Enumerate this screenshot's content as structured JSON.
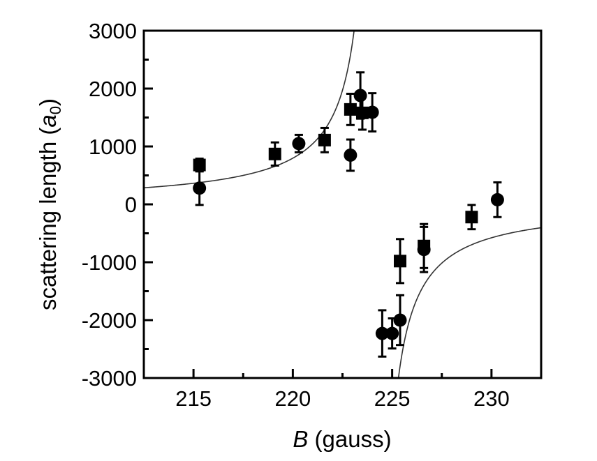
{
  "chart_data": {
    "type": "scatter",
    "xlabel": {
      "italic": "B",
      "rest": " (gauss)"
    },
    "ylabel": {
      "prefix": "scattering length (",
      "symbol": "a",
      "sub": "0",
      "suffix": ")"
    },
    "xlim": [
      212.5,
      232.5
    ],
    "ylim": [
      -3000,
      3000
    ],
    "xticks": [
      215,
      220,
      225,
      230
    ],
    "xtick_labels": [
      "215",
      "220",
      "225",
      "230"
    ],
    "yticks": [
      -3000,
      -2000,
      -1000,
      0,
      1000,
      2000,
      3000
    ],
    "ytick_labels": [
      "-3000",
      "-2000",
      "-1000",
      "0",
      "1000",
      "2000",
      "3000"
    ],
    "grid": false,
    "legend": "none",
    "series": [
      {
        "marker": "square",
        "points": [
          {
            "x": 215.3,
            "y": 680,
            "yerr": 110
          },
          {
            "x": 219.1,
            "y": 870,
            "yerr": 200
          },
          {
            "x": 221.6,
            "y": 1110,
            "yerr": 210
          },
          {
            "x": 222.9,
            "y": 1640,
            "yerr": 270
          },
          {
            "x": 223.5,
            "y": 1580,
            "yerr": 290
          },
          {
            "x": 225.4,
            "y": -980,
            "yerr": 380
          },
          {
            "x": 226.6,
            "y": -720,
            "yerr": 380
          },
          {
            "x": 229.0,
            "y": -220,
            "yerr": 210
          }
        ]
      },
      {
        "marker": "circle",
        "points": [
          {
            "x": 215.3,
            "y": 280,
            "yerr": 290
          },
          {
            "x": 220.3,
            "y": 1050,
            "yerr": 150
          },
          {
            "x": 222.9,
            "y": 850,
            "yerr": 270
          },
          {
            "x": 223.4,
            "y": 1880,
            "yerr": 400
          },
          {
            "x": 224.0,
            "y": 1590,
            "yerr": 330
          },
          {
            "x": 224.5,
            "y": -2230,
            "yerr": 400
          },
          {
            "x": 225.0,
            "y": -2230,
            "yerr": 260
          },
          {
            "x": 225.4,
            "y": -2000,
            "yerr": 430
          },
          {
            "x": 226.6,
            "y": -780,
            "yerr": 390
          },
          {
            "x": 230.3,
            "y": 80,
            "yerr": 300
          }
        ]
      }
    ],
    "fit": {
      "type": "resonance",
      "a_bg": 0,
      "scale": 3350,
      "center": 224.2
    }
  }
}
